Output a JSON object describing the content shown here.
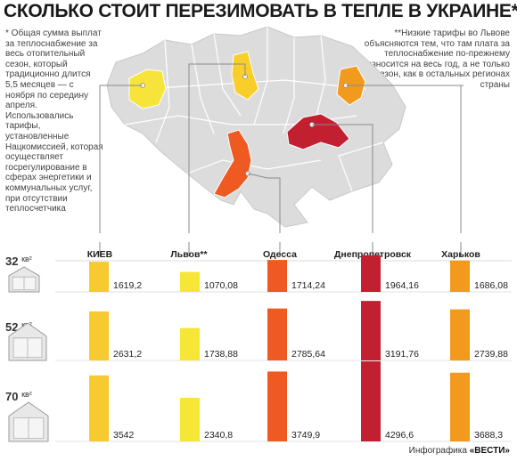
{
  "title": "СКОЛЬКО СТОИТ ПЕРЕЗИМОВАТЬ В ТЕПЛЕ В УКРАИНЕ*",
  "notes": {
    "left": "* Общая сумма выплат за теплоснабжение за весь отопительный сезон, который традиционно длится 5,5 месяцев — с ноября по середину апреля. Использовались тарифы, установленные Нацкомиссией, которая осуществляет госрегулирование в сферах энергетики и коммунальных услуг, при отсутствии теплосчетчика",
    "right": "**Низкие тарифы во Львове объясняются тем, что там плата за теплоснабжение по-прежнему разносится на весь год, а не только отопсезон, как в остальных регионах страны"
  },
  "credit": {
    "prefix": "Инфографика ",
    "brand": "«ВЕСТИ»"
  },
  "map": {
    "base_color": "#dcdcdc",
    "border_color": "#ffffff",
    "highlights": [
      {
        "name": "Львов",
        "color": "#f6e43a"
      },
      {
        "name": "Киев",
        "color": "#f8cf2a"
      },
      {
        "name": "Харьков",
        "color": "#f29a1e"
      },
      {
        "name": "Днепропетровск",
        "color": "#c21f30"
      },
      {
        "name": "Одесса",
        "color": "#ee5a22"
      }
    ]
  },
  "chart_data": {
    "type": "bar",
    "categories": [
      "КИЕВ",
      "Львов**",
      "Одесса",
      "Днепропетровск",
      "Харьков"
    ],
    "colors": [
      "#f7cb2f",
      "#f6e637",
      "#ee5a22",
      "#c21f30",
      "#f29a1e"
    ],
    "unit_suffix": "кв²",
    "series": [
      {
        "name": "32",
        "values": [
          1619.2,
          1070.08,
          1714.24,
          1964.16,
          1686.08
        ],
        "labels": [
          "1619,2",
          "1070,08",
          "1714,24",
          "1964,16",
          "1686,08"
        ]
      },
      {
        "name": "52",
        "values": [
          2631.2,
          1738.88,
          2785.64,
          3191.76,
          2739.88
        ],
        "labels": [
          "2631,2",
          "1738,88",
          "2785,64",
          "3191,76",
          "2739,88"
        ]
      },
      {
        "name": "70",
        "values": [
          3542,
          2340.8,
          3749.9,
          4296.6,
          3688.3
        ],
        "labels": [
          "3542",
          "2340,8",
          "3749,9",
          "4296,6",
          "3688,3"
        ]
      }
    ]
  }
}
